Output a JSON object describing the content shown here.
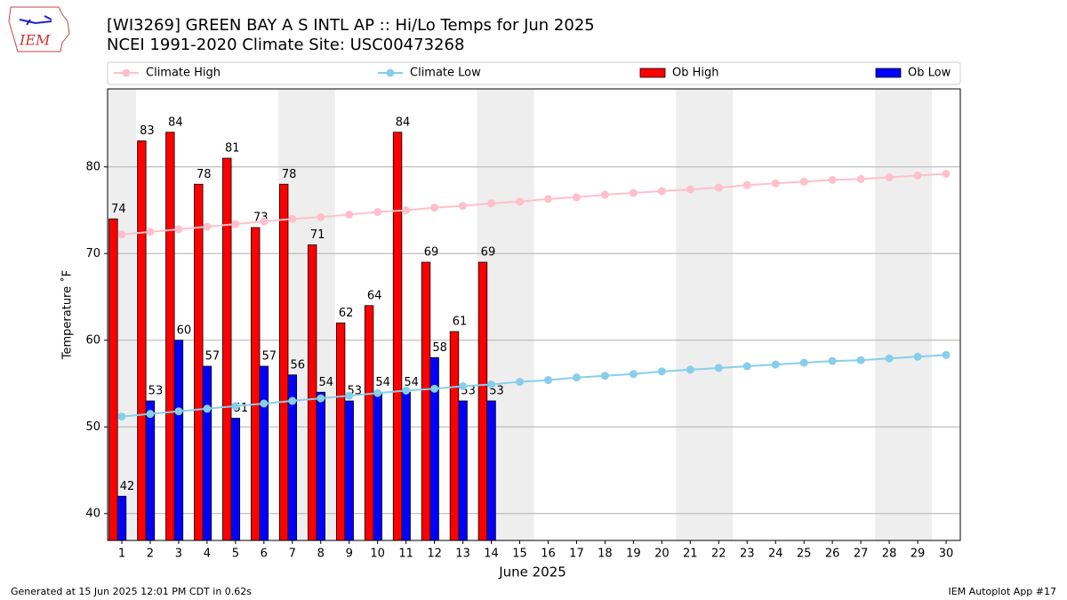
{
  "logo_text": "IEM",
  "footer_left": "Generated at 15 Jun 2025 12:01 PM CDT in 0.62s",
  "footer_right": "IEM Autoplot App #17",
  "chart_data": {
    "type": "bar",
    "title": "[WI3269] GREEN BAY A S INTL AP :: Hi/Lo Temps for Jun 2025",
    "subtitle": "NCEI 1991-2020 Climate Site: USC00473268",
    "x_label": "June 2025",
    "y_label": "Temperature ˚F",
    "x": [
      1,
      2,
      3,
      4,
      5,
      6,
      7,
      8,
      9,
      10,
      11,
      12,
      13,
      14,
      15,
      16,
      17,
      18,
      19,
      20,
      21,
      22,
      23,
      24,
      25,
      26,
      27,
      28,
      29,
      30
    ],
    "xlim": [
      0.5,
      30.5
    ],
    "xticks": [
      1,
      2,
      3,
      4,
      5,
      6,
      7,
      8,
      9,
      10,
      11,
      12,
      13,
      14,
      15,
      16,
      17,
      18,
      19,
      20,
      21,
      22,
      23,
      24,
      25,
      26,
      27,
      28,
      29,
      30
    ],
    "ylim": [
      36.9,
      89.0
    ],
    "yticks": [
      40,
      50,
      60,
      70,
      80
    ],
    "grid": true,
    "shaded_spans": [
      [
        0.5,
        1.5
      ],
      [
        6.5,
        8.5
      ],
      [
        13.5,
        15.5
      ],
      [
        20.5,
        22.5
      ],
      [
        27.5,
        29.5
      ]
    ],
    "series": [
      {
        "name": "Climate High",
        "type": "line",
        "color": "#ffc0cb",
        "values": [
          72.2,
          72.5,
          72.8,
          73.1,
          73.4,
          73.7,
          74.0,
          74.2,
          74.5,
          74.8,
          75.0,
          75.3,
          75.5,
          75.8,
          76.0,
          76.3,
          76.5,
          76.8,
          77.0,
          77.2,
          77.4,
          77.6,
          77.9,
          78.1,
          78.3,
          78.5,
          78.6,
          78.8,
          79.0,
          79.2
        ]
      },
      {
        "name": "Climate Low",
        "type": "line",
        "color": "#87ceeb",
        "values": [
          51.2,
          51.5,
          51.8,
          52.1,
          52.4,
          52.7,
          53.0,
          53.3,
          53.6,
          53.9,
          54.2,
          54.4,
          54.7,
          54.9,
          55.2,
          55.4,
          55.7,
          55.9,
          56.1,
          56.4,
          56.6,
          56.8,
          57.0,
          57.2,
          57.4,
          57.6,
          57.7,
          57.9,
          58.1,
          58.3
        ]
      },
      {
        "name": "Ob High",
        "type": "bar",
        "color": "#ff0000",
        "values": [
          74,
          83,
          84,
          78,
          81,
          73,
          78,
          71,
          62,
          64,
          84,
          69,
          61,
          69,
          null,
          null,
          null,
          null,
          null,
          null,
          null,
          null,
          null,
          null,
          null,
          null,
          null,
          null,
          null,
          null
        ]
      },
      {
        "name": "Ob Low",
        "type": "bar",
        "color": "#0000ff",
        "values": [
          42,
          53,
          60,
          57,
          51,
          57,
          56,
          54,
          53,
          54,
          54,
          58,
          53,
          53,
          null,
          null,
          null,
          null,
          null,
          null,
          null,
          null,
          null,
          null,
          null,
          null,
          null,
          null,
          null,
          null
        ]
      }
    ]
  }
}
